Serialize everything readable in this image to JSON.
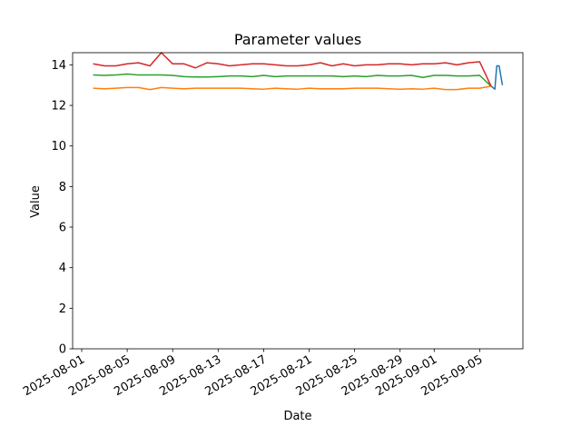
{
  "chart_data": {
    "type": "line",
    "title": "Parameter values",
    "x_label": "Date",
    "y_label": "Value",
    "xlim": [
      "2025-07-31T04:48",
      "2025-09-08T19:12"
    ],
    "xticks": [
      "2025-08-01",
      "2025-08-05",
      "2025-08-09",
      "2025-08-13",
      "2025-08-17",
      "2025-08-21",
      "2025-08-25",
      "2025-08-29",
      "2025-09-01",
      "2025-09-05"
    ],
    "ylim": [
      0,
      14.6
    ],
    "yticks": [
      0,
      2,
      4,
      6,
      8,
      10,
      12,
      14
    ],
    "series": [
      {
        "color": "#1f77b4",
        "x": [
          "2025-09-06T00:00",
          "2025-09-06T08:00",
          "2025-09-06T12:00",
          "2025-09-06T17:00",
          "2025-09-07T00:00"
        ],
        "values": [
          12.95,
          12.8,
          13.95,
          13.95,
          13.0
        ]
      },
      {
        "color": "#ff7f0e",
        "x": [
          "2025-08-02",
          "2025-08-03",
          "2025-08-04",
          "2025-08-05",
          "2025-08-06",
          "2025-08-07",
          "2025-08-08",
          "2025-08-09",
          "2025-08-10",
          "2025-08-11",
          "2025-08-12",
          "2025-08-13",
          "2025-08-14",
          "2025-08-15",
          "2025-08-16",
          "2025-08-17",
          "2025-08-18",
          "2025-08-19",
          "2025-08-20",
          "2025-08-21",
          "2025-08-22",
          "2025-08-23",
          "2025-08-24",
          "2025-08-25",
          "2025-08-26",
          "2025-08-27",
          "2025-08-28",
          "2025-08-29",
          "2025-08-30",
          "2025-08-31",
          "2025-09-01",
          "2025-09-02",
          "2025-09-03",
          "2025-09-04",
          "2025-09-05",
          "2025-09-06"
        ],
        "values": [
          12.85,
          12.82,
          12.85,
          12.88,
          12.88,
          12.78,
          12.88,
          12.85,
          12.82,
          12.85,
          12.85,
          12.85,
          12.85,
          12.85,
          12.82,
          12.8,
          12.85,
          12.82,
          12.8,
          12.85,
          12.82,
          12.82,
          12.82,
          12.85,
          12.85,
          12.85,
          12.82,
          12.8,
          12.82,
          12.8,
          12.85,
          12.78,
          12.78,
          12.85,
          12.85,
          12.95
        ]
      },
      {
        "color": "#2ca02c",
        "x": [
          "2025-08-02",
          "2025-08-03",
          "2025-08-04",
          "2025-08-05",
          "2025-08-06",
          "2025-08-07",
          "2025-08-08",
          "2025-08-09",
          "2025-08-10",
          "2025-08-11",
          "2025-08-12",
          "2025-08-13",
          "2025-08-14",
          "2025-08-15",
          "2025-08-16",
          "2025-08-17",
          "2025-08-18",
          "2025-08-19",
          "2025-08-20",
          "2025-08-21",
          "2025-08-22",
          "2025-08-23",
          "2025-08-24",
          "2025-08-25",
          "2025-08-26",
          "2025-08-27",
          "2025-08-28",
          "2025-08-29",
          "2025-08-30",
          "2025-08-31",
          "2025-09-01",
          "2025-09-02",
          "2025-09-03",
          "2025-09-04",
          "2025-09-05",
          "2025-09-06"
        ],
        "values": [
          13.5,
          13.48,
          13.5,
          13.55,
          13.5,
          13.5,
          13.5,
          13.48,
          13.42,
          13.4,
          13.4,
          13.42,
          13.45,
          13.45,
          13.42,
          13.48,
          13.42,
          13.45,
          13.45,
          13.45,
          13.45,
          13.45,
          13.42,
          13.45,
          13.42,
          13.48,
          13.45,
          13.45,
          13.48,
          13.38,
          13.48,
          13.48,
          13.45,
          13.45,
          13.48,
          12.95
        ]
      },
      {
        "color": "#d62728",
        "x": [
          "2025-08-02",
          "2025-08-03",
          "2025-08-04",
          "2025-08-05",
          "2025-08-06",
          "2025-08-07",
          "2025-08-08",
          "2025-08-09",
          "2025-08-10",
          "2025-08-11",
          "2025-08-12",
          "2025-08-13",
          "2025-08-14",
          "2025-08-15",
          "2025-08-16",
          "2025-08-17",
          "2025-08-18",
          "2025-08-19",
          "2025-08-20",
          "2025-08-21",
          "2025-08-22",
          "2025-08-23",
          "2025-08-24",
          "2025-08-25",
          "2025-08-26",
          "2025-08-27",
          "2025-08-28",
          "2025-08-29",
          "2025-08-30",
          "2025-08-31",
          "2025-09-01",
          "2025-09-02",
          "2025-09-03",
          "2025-09-04",
          "2025-09-05",
          "2025-09-06"
        ],
        "values": [
          14.05,
          13.95,
          13.95,
          14.05,
          14.1,
          13.95,
          14.6,
          14.05,
          14.05,
          13.85,
          14.1,
          14.05,
          13.95,
          14.0,
          14.05,
          14.05,
          14.0,
          13.95,
          13.95,
          14.0,
          14.1,
          13.95,
          14.05,
          13.95,
          14.0,
          14.0,
          14.05,
          14.05,
          14.0,
          14.05,
          14.05,
          14.1,
          14.0,
          14.1,
          14.15,
          12.95
        ]
      }
    ]
  }
}
